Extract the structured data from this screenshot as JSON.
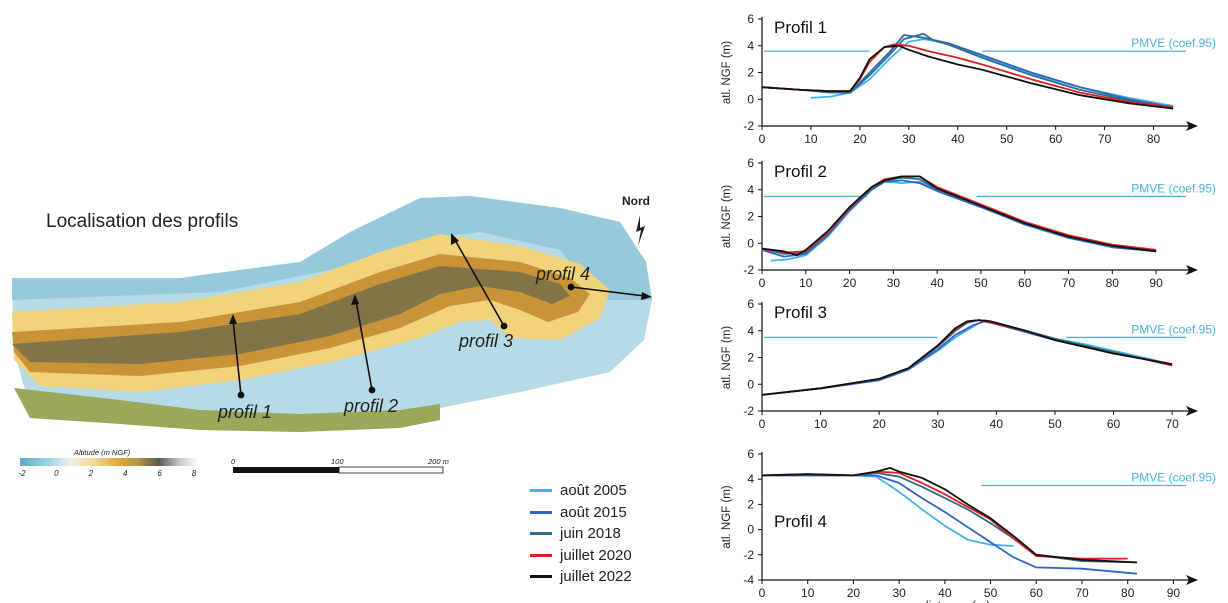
{
  "map": {
    "title": "Localisation des profils",
    "north_label": "Nord",
    "colorbar_title": "Altitude (m NGF)",
    "colorbar_ticks": [
      "-2",
      "0",
      "2",
      "4",
      "6",
      "8"
    ],
    "scalebar_ticks": [
      "0",
      "100",
      "200 m"
    ],
    "profile_labels": [
      "profil 1",
      "profil 2",
      "profil 3",
      "profil 4"
    ]
  },
  "colors": {
    "aout2005": "#3fb4e8",
    "aout2015": "#2f64c8",
    "juin2018": "#2f6f86",
    "juillet2020": "#e02020",
    "juillet2022": "#111111",
    "pmve": "#4ab3d8"
  },
  "legend": [
    {
      "label": "août 2005",
      "color": "#3fb4e8"
    },
    {
      "label": "août 2015",
      "color": "#2f64c8"
    },
    {
      "label": "juin 2018",
      "color": "#2f6f86"
    },
    {
      "label": "juillet 2020",
      "color": "#e02020"
    },
    {
      "label": "juillet 2022",
      "color": "#111111"
    }
  ],
  "chart_data": [
    {
      "type": "line",
      "title": "Profil 1",
      "ylabel": "atl. NGF (m)",
      "xlabel": "",
      "xlim": [
        0,
        85
      ],
      "ylim": [
        -2,
        6
      ],
      "xticks": [
        0,
        10,
        20,
        30,
        40,
        50,
        60,
        70,
        80
      ],
      "yticks": [
        -2,
        0,
        2,
        4,
        6
      ],
      "pmve": {
        "label": "PMVE (coef.95)",
        "y": 3.6
      },
      "series": [
        {
          "name": "août 2005",
          "x": [
            10,
            14,
            18,
            22,
            26,
            30,
            33,
            38,
            45,
            55,
            65,
            75,
            84
          ],
          "y": [
            0.1,
            0.2,
            0.5,
            1.5,
            3.0,
            4.3,
            4.5,
            4.2,
            3.2,
            1.9,
            0.9,
            0.1,
            -0.5
          ]
        },
        {
          "name": "août 2015",
          "x": [
            0,
            8,
            14,
            18,
            22,
            26,
            29,
            31,
            33,
            38,
            45,
            55,
            65,
            75,
            84
          ],
          "y": [
            0.9,
            0.7,
            0.5,
            0.5,
            1.8,
            3.3,
            4.5,
            4.7,
            4.6,
            4.2,
            3.3,
            2.0,
            0.9,
            0.0,
            -0.6
          ]
        },
        {
          "name": "juin 2018",
          "x": [
            0,
            8,
            14,
            18,
            22,
            26,
            29,
            31,
            33,
            35,
            38,
            45,
            55,
            65,
            75,
            84
          ],
          "y": [
            0.9,
            0.7,
            0.6,
            0.5,
            2.0,
            3.5,
            4.8,
            4.7,
            4.9,
            4.4,
            4.1,
            3.1,
            1.8,
            0.7,
            -0.1,
            -0.7
          ]
        },
        {
          "name": "juillet 2020",
          "x": [
            0,
            8,
            14,
            18,
            20,
            22,
            25,
            27,
            30,
            34,
            40,
            45,
            55,
            65,
            75,
            84
          ],
          "y": [
            0.9,
            0.7,
            0.6,
            0.6,
            1.5,
            2.8,
            3.9,
            4.1,
            4.0,
            3.6,
            3.1,
            2.6,
            1.5,
            0.5,
            -0.2,
            -0.6
          ]
        },
        {
          "name": "juillet 2022",
          "x": [
            0,
            8,
            14,
            18,
            20,
            22,
            25,
            28,
            30,
            34,
            40,
            45,
            55,
            65,
            75,
            84
          ],
          "y": [
            0.9,
            0.7,
            0.6,
            0.6,
            1.6,
            3.0,
            3.9,
            4.0,
            3.7,
            3.2,
            2.6,
            2.2,
            1.2,
            0.3,
            -0.3,
            -0.7
          ]
        }
      ]
    },
    {
      "type": "line",
      "title": "Profil 2",
      "ylabel": "atl. NGF (m)",
      "xlabel": "",
      "xlim": [
        0,
        95
      ],
      "ylim": [
        -2,
        6
      ],
      "xticks": [
        0,
        10,
        20,
        30,
        40,
        50,
        60,
        70,
        80,
        90
      ],
      "yticks": [
        -2,
        0,
        2,
        4,
        6
      ],
      "pmve": {
        "label": "PMVE (coef.95)",
        "y": 3.5
      },
      "series": [
        {
          "name": "août 2005",
          "x": [
            2,
            6,
            10,
            15,
            20,
            25,
            28,
            32,
            36,
            40,
            50,
            60,
            70,
            80,
            90
          ],
          "y": [
            -1.3,
            -1.2,
            -0.9,
            0.5,
            2.4,
            4.0,
            4.6,
            4.5,
            4.6,
            4.0,
            2.7,
            1.5,
            0.5,
            -0.2,
            -0.6
          ]
        },
        {
          "name": "août 2015",
          "x": [
            0,
            5,
            10,
            15,
            20,
            25,
            28,
            32,
            36,
            40,
            50,
            60,
            70,
            80,
            90
          ],
          "y": [
            -0.5,
            -1.0,
            -0.8,
            0.6,
            2.5,
            4.0,
            4.6,
            4.7,
            4.5,
            3.9,
            2.7,
            1.4,
            0.4,
            -0.3,
            -0.6
          ]
        },
        {
          "name": "juin 2018",
          "x": [
            0,
            5,
            10,
            15,
            20,
            25,
            28,
            32,
            36,
            40,
            50,
            60,
            70,
            80,
            90
          ],
          "y": [
            -0.4,
            -0.8,
            -0.7,
            0.7,
            2.6,
            4.1,
            4.7,
            4.9,
            4.8,
            4.0,
            2.8,
            1.5,
            0.5,
            -0.2,
            -0.6
          ]
        },
        {
          "name": "juillet 2020",
          "x": [
            0,
            5,
            10,
            15,
            20,
            25,
            28,
            32,
            36,
            40,
            50,
            60,
            70,
            80,
            90
          ],
          "y": [
            -0.4,
            -0.7,
            -0.6,
            0.8,
            2.6,
            4.2,
            4.8,
            5.0,
            5.0,
            4.2,
            2.9,
            1.6,
            0.6,
            -0.1,
            -0.5
          ]
        },
        {
          "name": "juillet 2022",
          "x": [
            0,
            5,
            8,
            10,
            15,
            20,
            25,
            28,
            32,
            36,
            40,
            50,
            60,
            70,
            80,
            90
          ],
          "y": [
            -0.4,
            -0.6,
            -0.9,
            -0.5,
            0.9,
            2.7,
            4.2,
            4.7,
            5.0,
            5.0,
            4.1,
            2.8,
            1.5,
            0.5,
            -0.2,
            -0.6
          ]
        }
      ]
    },
    {
      "type": "line",
      "title": "Profil 3",
      "ylabel": "atl. NGF (m)",
      "xlabel": "",
      "xlim": [
        0,
        71
      ],
      "ylim": [
        -2,
        6
      ],
      "xticks": [
        0,
        10,
        20,
        30,
        40,
        50,
        60,
        70
      ],
      "yticks": [
        -2,
        0,
        2,
        4,
        6
      ],
      "pmve": {
        "label": "PMVE (coef.95)",
        "y": 3.5
      },
      "series": [
        {
          "name": "août 2005",
          "x": [
            0,
            10,
            20,
            25,
            30,
            33,
            36,
            38,
            40,
            45,
            50,
            55,
            60,
            65,
            70
          ],
          "y": [
            -0.8,
            -0.3,
            0.3,
            1.1,
            2.5,
            3.5,
            4.3,
            4.8,
            4.6,
            4.0,
            3.4,
            3.0,
            2.5,
            2.0,
            1.5
          ]
        },
        {
          "name": "août 2015",
          "x": [
            0,
            10,
            20,
            25,
            30,
            33,
            36,
            38,
            40,
            45,
            50,
            55,
            60,
            65,
            70
          ],
          "y": [
            -0.8,
            -0.3,
            0.3,
            1.1,
            2.6,
            3.7,
            4.4,
            4.7,
            4.5,
            3.9,
            3.3,
            2.8,
            2.3,
            1.9,
            1.4
          ]
        },
        {
          "name": "juin 2018",
          "x": [
            0,
            10,
            20,
            25,
            30,
            33,
            35,
            37,
            39,
            45,
            50,
            55,
            60,
            65,
            70
          ],
          "y": [
            -0.8,
            -0.3,
            0.4,
            1.2,
            2.8,
            4.0,
            4.6,
            4.8,
            4.7,
            4.0,
            3.4,
            2.9,
            2.4,
            1.9,
            1.5
          ]
        },
        {
          "name": "juillet 2020",
          "x": [
            0,
            10,
            20,
            25,
            30,
            33,
            35,
            37,
            39,
            45,
            50,
            55,
            60,
            65,
            70
          ],
          "y": [
            -0.8,
            -0.3,
            0.4,
            1.2,
            2.9,
            4.1,
            4.7,
            4.8,
            4.6,
            4.0,
            3.3,
            2.8,
            2.3,
            1.9,
            1.4
          ]
        },
        {
          "name": "juillet 2022",
          "x": [
            0,
            10,
            20,
            25,
            30,
            33,
            35,
            37,
            39,
            45,
            50,
            55,
            60,
            65,
            70
          ],
          "y": [
            -0.8,
            -0.3,
            0.4,
            1.2,
            2.9,
            4.2,
            4.7,
            4.8,
            4.7,
            4.0,
            3.3,
            2.8,
            2.3,
            1.9,
            1.5
          ]
        }
      ]
    },
    {
      "type": "line",
      "title": "Profil 4",
      "ylabel": "atl. NGF (m)",
      "xlabel": "distance (m)",
      "xlim": [
        0,
        91
      ],
      "ylim": [
        -4,
        6
      ],
      "xticks": [
        0,
        10,
        20,
        30,
        40,
        50,
        60,
        70,
        80,
        90
      ],
      "yticks": [
        -4,
        -2,
        0,
        2,
        4,
        6
      ],
      "pmve": {
        "label": "PMVE (coef.95)",
        "y": 3.5
      },
      "series": [
        {
          "name": "août 2005",
          "x": [
            0,
            10,
            20,
            25,
            30,
            35,
            40,
            45,
            50,
            55
          ],
          "y": [
            4.3,
            4.3,
            4.3,
            4.2,
            3.0,
            1.6,
            0.3,
            -0.8,
            -1.2,
            -1.3
          ]
        },
        {
          "name": "août 2015",
          "x": [
            0,
            10,
            20,
            25,
            30,
            35,
            40,
            45,
            50,
            55,
            60,
            70,
            82
          ],
          "y": [
            4.3,
            4.3,
            4.3,
            4.3,
            3.7,
            2.5,
            1.4,
            0.2,
            -1.0,
            -2.2,
            -3.0,
            -3.1,
            -3.5
          ]
        },
        {
          "name": "juin 2018",
          "x": [
            0,
            10,
            20,
            25,
            30,
            35,
            40,
            45,
            50,
            55,
            60,
            70,
            82
          ],
          "y": [
            4.3,
            4.3,
            4.3,
            4.5,
            4.2,
            3.4,
            2.5,
            1.6,
            0.5,
            -0.7,
            -2.0,
            -2.5,
            -2.6
          ]
        },
        {
          "name": "juillet 2020",
          "x": [
            0,
            10,
            20,
            25,
            30,
            35,
            40,
            45,
            50,
            55,
            60,
            70,
            80
          ],
          "y": [
            4.3,
            4.4,
            4.3,
            4.6,
            4.5,
            3.7,
            2.8,
            1.8,
            0.8,
            -0.7,
            -2.1,
            -2.3,
            -2.3
          ]
        },
        {
          "name": "juillet 2022",
          "x": [
            0,
            10,
            20,
            25,
            28,
            30,
            35,
            40,
            45,
            50,
            55,
            60,
            70,
            82
          ],
          "y": [
            4.3,
            4.4,
            4.3,
            4.6,
            4.9,
            4.6,
            4.1,
            3.2,
            2.0,
            0.9,
            -0.5,
            -2.0,
            -2.4,
            -2.6
          ]
        }
      ]
    }
  ]
}
